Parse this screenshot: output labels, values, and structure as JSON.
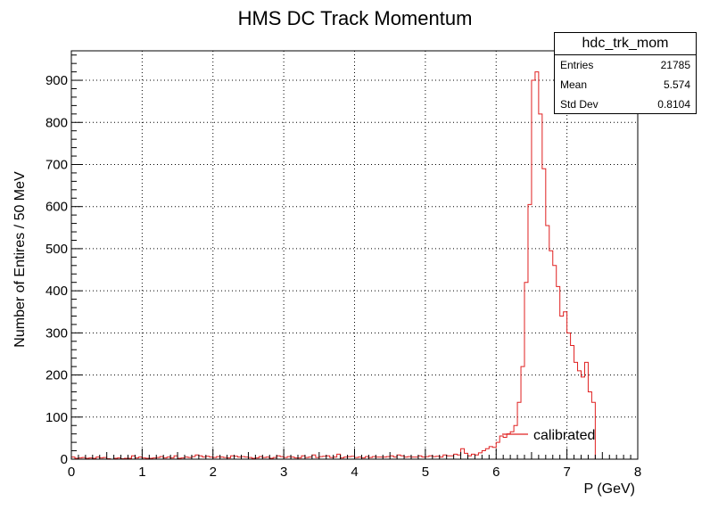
{
  "chart_data": {
    "type": "histogram",
    "title": "HMS DC Track Momentum",
    "xlabel": "P (GeV)",
    "ylabel": "Number of Entires / 50 MeV",
    "xlim": [
      0,
      8
    ],
    "ylim": [
      0,
      970
    ],
    "bin_width": 0.05,
    "x_ticks": [
      0,
      1,
      2,
      3,
      4,
      5,
      6,
      7,
      8
    ],
    "y_ticks": [
      0,
      100,
      200,
      300,
      400,
      500,
      600,
      700,
      800,
      900
    ],
    "grid": true,
    "line_color": "#e02020",
    "legend": {
      "position": "bottom-right",
      "entries": [
        "calibrated"
      ]
    },
    "bins_from_x": 0,
    "values": [
      5,
      2,
      3,
      4,
      2,
      3,
      2,
      5,
      3,
      4,
      1,
      0,
      2,
      3,
      1,
      2,
      2,
      8,
      3,
      5,
      3,
      2,
      2,
      3,
      4,
      6,
      3,
      5,
      3,
      8,
      2,
      3,
      5,
      4,
      6,
      10,
      8,
      5,
      7,
      5,
      4,
      6,
      5,
      4,
      3,
      8,
      7,
      5,
      6,
      5,
      4,
      2,
      3,
      6,
      4,
      5,
      2,
      4,
      8,
      6,
      4,
      6,
      5,
      3,
      3,
      8,
      4,
      5,
      10,
      4,
      6,
      7,
      8,
      4,
      5,
      12,
      3,
      5,
      6,
      7,
      4,
      5,
      3,
      6,
      4,
      6,
      5,
      5,
      5,
      6,
      8,
      5,
      10,
      8,
      5,
      6,
      5,
      5,
      8,
      5,
      6,
      8,
      6,
      7,
      5,
      10,
      8,
      8,
      12,
      10,
      25,
      14,
      8,
      12,
      10,
      15,
      20,
      25,
      30,
      28,
      40,
      55,
      52,
      60,
      65,
      80,
      135,
      220,
      420,
      605,
      900,
      920,
      820,
      690,
      555,
      495,
      460,
      410,
      340,
      350,
      300,
      270,
      230,
      210,
      195,
      230,
      160,
      135
    ]
  },
  "stats": {
    "title": "hdc_trk_mom",
    "rows": [
      {
        "label": "Entries",
        "value": "21785"
      },
      {
        "label": "Mean",
        "value": "5.574"
      },
      {
        "label": "Std Dev",
        "value": "0.8104"
      }
    ]
  }
}
